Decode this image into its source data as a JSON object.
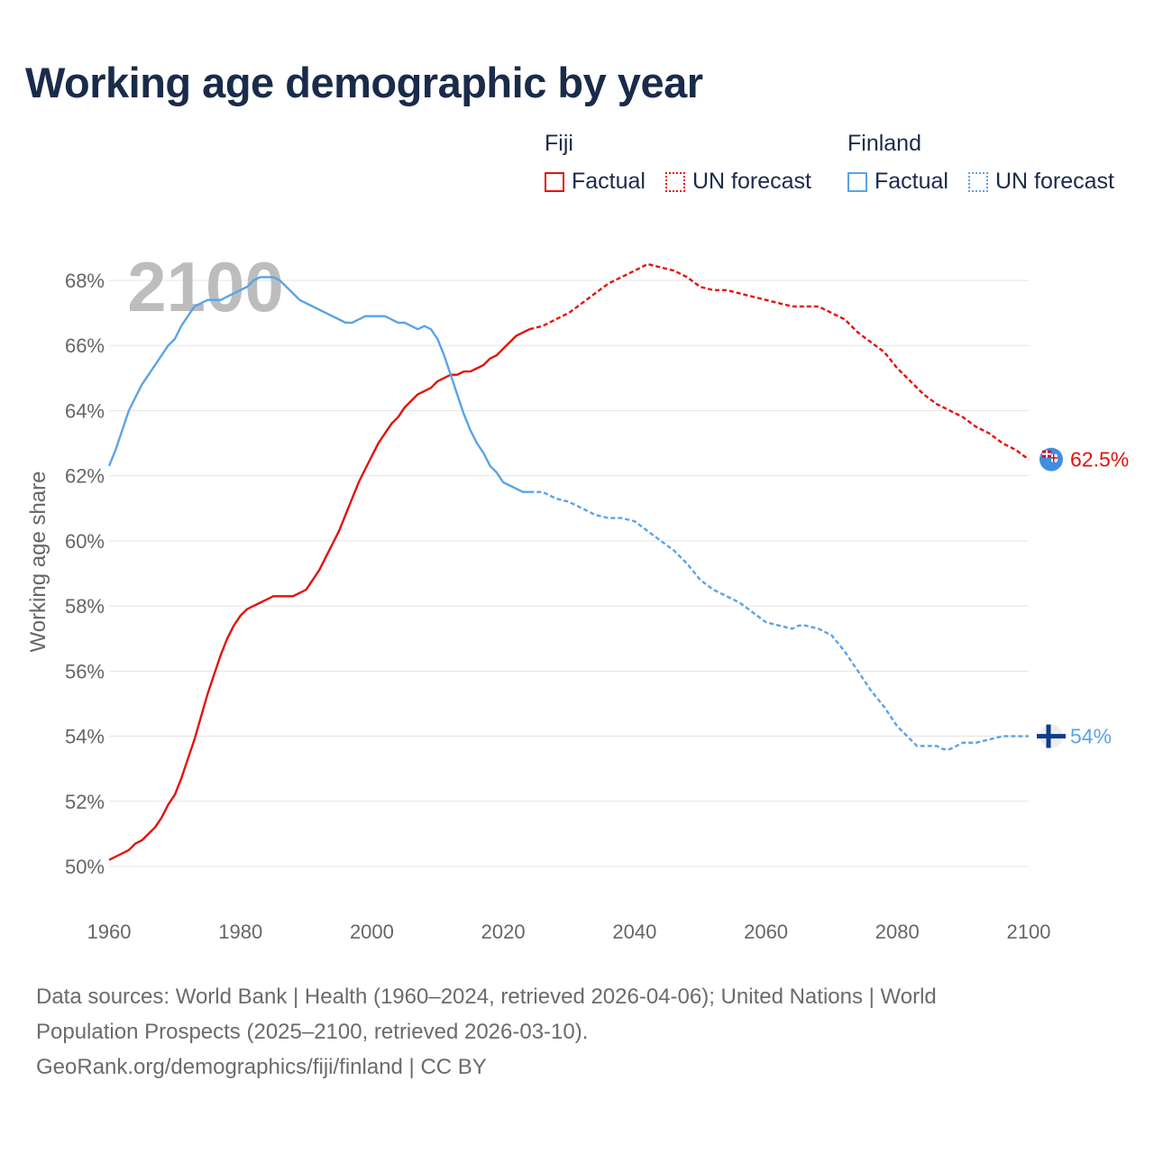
{
  "title": "Working age demographic by year",
  "legend": {
    "groups": [
      {
        "name": "Fiji",
        "color": "#e3120b",
        "factual_label": "Factual",
        "forecast_label": "UN forecast"
      },
      {
        "name": "Finland",
        "color": "#5ba3e6",
        "factual_label": "Factual",
        "forecast_label": "UN forecast"
      }
    ]
  },
  "chart_data": {
    "type": "line",
    "title": "Working age demographic by year",
    "xlabel": "",
    "ylabel": "Working age share",
    "xlim": [
      1960,
      2100
    ],
    "ylim": [
      49,
      69
    ],
    "x_ticks": [
      1960,
      1980,
      2000,
      2020,
      2040,
      2060,
      2080,
      2100
    ],
    "x_tick_labels": [
      "1960",
      "1980",
      "2000",
      "2020",
      "2040",
      "2060",
      "2080",
      "2100"
    ],
    "y_ticks": [
      50,
      52,
      54,
      56,
      58,
      60,
      62,
      64,
      66,
      68
    ],
    "y_tick_labels": [
      "50%",
      "52%",
      "54%",
      "56%",
      "58%",
      "60%",
      "62%",
      "64%",
      "66%",
      "68%"
    ],
    "year_watermark": "2100",
    "grid": true,
    "series": [
      {
        "name": "Fiji",
        "part": "Factual",
        "style": "solid",
        "color": "#e3120b",
        "points": [
          [
            1960,
            50.2
          ],
          [
            1963,
            50.5
          ],
          [
            1964,
            50.7
          ],
          [
            1965,
            50.8
          ],
          [
            1966,
            51.0
          ],
          [
            1967,
            51.2
          ],
          [
            1968,
            51.5
          ],
          [
            1969,
            51.9
          ],
          [
            1970,
            52.2
          ],
          [
            1971,
            52.7
          ],
          [
            1972,
            53.3
          ],
          [
            1973,
            53.9
          ],
          [
            1974,
            54.6
          ],
          [
            1975,
            55.3
          ],
          [
            1976,
            55.9
          ],
          [
            1977,
            56.5
          ],
          [
            1978,
            57.0
          ],
          [
            1979,
            57.4
          ],
          [
            1980,
            57.7
          ],
          [
            1981,
            57.9
          ],
          [
            1982,
            58.0
          ],
          [
            1983,
            58.1
          ],
          [
            1984,
            58.2
          ],
          [
            1985,
            58.3
          ],
          [
            1988,
            58.3
          ],
          [
            1989,
            58.4
          ],
          [
            1990,
            58.5
          ],
          [
            1991,
            58.8
          ],
          [
            1992,
            59.1
          ],
          [
            1993,
            59.5
          ],
          [
            1994,
            59.9
          ],
          [
            1995,
            60.3
          ],
          [
            1996,
            60.8
          ],
          [
            1997,
            61.3
          ],
          [
            1998,
            61.8
          ],
          [
            1999,
            62.2
          ],
          [
            2000,
            62.6
          ],
          [
            2001,
            63.0
          ],
          [
            2002,
            63.3
          ],
          [
            2003,
            63.6
          ],
          [
            2004,
            63.8
          ],
          [
            2005,
            64.1
          ],
          [
            2006,
            64.3
          ],
          [
            2007,
            64.5
          ],
          [
            2008,
            64.6
          ],
          [
            2009,
            64.7
          ],
          [
            2010,
            64.9
          ],
          [
            2011,
            65.0
          ],
          [
            2012,
            65.1
          ],
          [
            2013,
            65.1
          ],
          [
            2014,
            65.2
          ],
          [
            2015,
            65.2
          ],
          [
            2016,
            65.3
          ],
          [
            2017,
            65.4
          ],
          [
            2018,
            65.6
          ],
          [
            2019,
            65.7
          ],
          [
            2020,
            65.9
          ],
          [
            2021,
            66.1
          ],
          [
            2022,
            66.3
          ],
          [
            2023,
            66.4
          ],
          [
            2024,
            66.5
          ]
        ]
      },
      {
        "name": "Fiji",
        "part": "UN forecast",
        "style": "dashed",
        "color": "#e3120b",
        "points": [
          [
            2024,
            66.5
          ],
          [
            2026,
            66.6
          ],
          [
            2028,
            66.8
          ],
          [
            2030,
            67.0
          ],
          [
            2032,
            67.3
          ],
          [
            2034,
            67.6
          ],
          [
            2036,
            67.9
          ],
          [
            2038,
            68.1
          ],
          [
            2040,
            68.3
          ],
          [
            2042,
            68.5
          ],
          [
            2044,
            68.4
          ],
          [
            2046,
            68.3
          ],
          [
            2048,
            68.1
          ],
          [
            2050,
            67.8
          ],
          [
            2052,
            67.7
          ],
          [
            2054,
            67.7
          ],
          [
            2056,
            67.6
          ],
          [
            2058,
            67.5
          ],
          [
            2060,
            67.4
          ],
          [
            2062,
            67.3
          ],
          [
            2064,
            67.2
          ],
          [
            2066,
            67.2
          ],
          [
            2068,
            67.2
          ],
          [
            2070,
            67.0
          ],
          [
            2072,
            66.8
          ],
          [
            2074,
            66.4
          ],
          [
            2076,
            66.1
          ],
          [
            2078,
            65.8
          ],
          [
            2080,
            65.3
          ],
          [
            2082,
            64.9
          ],
          [
            2084,
            64.5
          ],
          [
            2086,
            64.2
          ],
          [
            2088,
            64.0
          ],
          [
            2090,
            63.8
          ],
          [
            2092,
            63.5
          ],
          [
            2094,
            63.3
          ],
          [
            2096,
            63.0
          ],
          [
            2098,
            62.8
          ],
          [
            2100,
            62.5
          ]
        ]
      },
      {
        "name": "Finland",
        "part": "Factual",
        "style": "solid",
        "color": "#5ba3e6",
        "points": [
          [
            1960,
            62.3
          ],
          [
            1961,
            62.8
          ],
          [
            1962,
            63.4
          ],
          [
            1963,
            64.0
          ],
          [
            1964,
            64.4
          ],
          [
            1965,
            64.8
          ],
          [
            1966,
            65.1
          ],
          [
            1967,
            65.4
          ],
          [
            1968,
            65.7
          ],
          [
            1969,
            66.0
          ],
          [
            1970,
            66.2
          ],
          [
            1971,
            66.6
          ],
          [
            1972,
            66.9
          ],
          [
            1973,
            67.2
          ],
          [
            1974,
            67.3
          ],
          [
            1975,
            67.4
          ],
          [
            1976,
            67.4
          ],
          [
            1977,
            67.4
          ],
          [
            1978,
            67.5
          ],
          [
            1979,
            67.6
          ],
          [
            1980,
            67.7
          ],
          [
            1981,
            67.8
          ],
          [
            1982,
            68.0
          ],
          [
            1983,
            68.1
          ],
          [
            1984,
            68.1
          ],
          [
            1985,
            68.1
          ],
          [
            1986,
            68.0
          ],
          [
            1987,
            67.8
          ],
          [
            1988,
            67.6
          ],
          [
            1989,
            67.4
          ],
          [
            1990,
            67.3
          ],
          [
            1992,
            67.1
          ],
          [
            1994,
            66.9
          ],
          [
            1996,
            66.7
          ],
          [
            1997,
            66.7
          ],
          [
            1998,
            66.8
          ],
          [
            1999,
            66.9
          ],
          [
            2000,
            66.9
          ],
          [
            2002,
            66.9
          ],
          [
            2003,
            66.8
          ],
          [
            2004,
            66.7
          ],
          [
            2005,
            66.7
          ],
          [
            2006,
            66.6
          ],
          [
            2007,
            66.5
          ],
          [
            2008,
            66.6
          ],
          [
            2009,
            66.5
          ],
          [
            2010,
            66.2
          ],
          [
            2011,
            65.7
          ],
          [
            2012,
            65.1
          ],
          [
            2013,
            64.5
          ],
          [
            2014,
            63.9
          ],
          [
            2015,
            63.4
          ],
          [
            2016,
            63.0
          ],
          [
            2017,
            62.7
          ],
          [
            2018,
            62.3
          ],
          [
            2019,
            62.1
          ],
          [
            2020,
            61.8
          ],
          [
            2021,
            61.7
          ],
          [
            2022,
            61.6
          ],
          [
            2023,
            61.5
          ],
          [
            2024,
            61.5
          ]
        ]
      },
      {
        "name": "Finland",
        "part": "UN forecast",
        "style": "dashed",
        "color": "#5ba3e6",
        "points": [
          [
            2024,
            61.5
          ],
          [
            2026,
            61.5
          ],
          [
            2028,
            61.3
          ],
          [
            2030,
            61.2
          ],
          [
            2032,
            61.0
          ],
          [
            2034,
            60.8
          ],
          [
            2036,
            60.7
          ],
          [
            2038,
            60.7
          ],
          [
            2040,
            60.6
          ],
          [
            2042,
            60.3
          ],
          [
            2044,
            60.0
          ],
          [
            2046,
            59.7
          ],
          [
            2048,
            59.3
          ],
          [
            2050,
            58.8
          ],
          [
            2052,
            58.5
          ],
          [
            2054,
            58.3
          ],
          [
            2056,
            58.1
          ],
          [
            2058,
            57.8
          ],
          [
            2060,
            57.5
          ],
          [
            2062,
            57.4
          ],
          [
            2064,
            57.3
          ],
          [
            2065,
            57.4
          ],
          [
            2066,
            57.4
          ],
          [
            2068,
            57.3
          ],
          [
            2070,
            57.1
          ],
          [
            2072,
            56.6
          ],
          [
            2074,
            56.0
          ],
          [
            2076,
            55.4
          ],
          [
            2078,
            54.9
          ],
          [
            2080,
            54.3
          ],
          [
            2082,
            53.9
          ],
          [
            2083,
            53.7
          ],
          [
            2086,
            53.7
          ],
          [
            2087,
            53.6
          ],
          [
            2088,
            53.6
          ],
          [
            2090,
            53.8
          ],
          [
            2092,
            53.8
          ],
          [
            2094,
            53.9
          ],
          [
            2096,
            54.0
          ],
          [
            2098,
            54.0
          ],
          [
            2100,
            54.0
          ]
        ]
      }
    ],
    "end_labels": [
      {
        "name": "Fiji",
        "value": 62.5,
        "text": "62.5%",
        "color": "#e3120b"
      },
      {
        "name": "Finland",
        "value": 54.0,
        "text": "54%",
        "color": "#5ba3e6"
      }
    ]
  },
  "source": {
    "line1": "Data sources: World Bank | Health (1960–2024, retrieved 2026-04-06); United Nations | World",
    "line2": "Population Prospects (2025–2100, retrieved 2026-03-10).",
    "line3": "GeoRank.org/demographics/fiji/finland | CC BY"
  }
}
